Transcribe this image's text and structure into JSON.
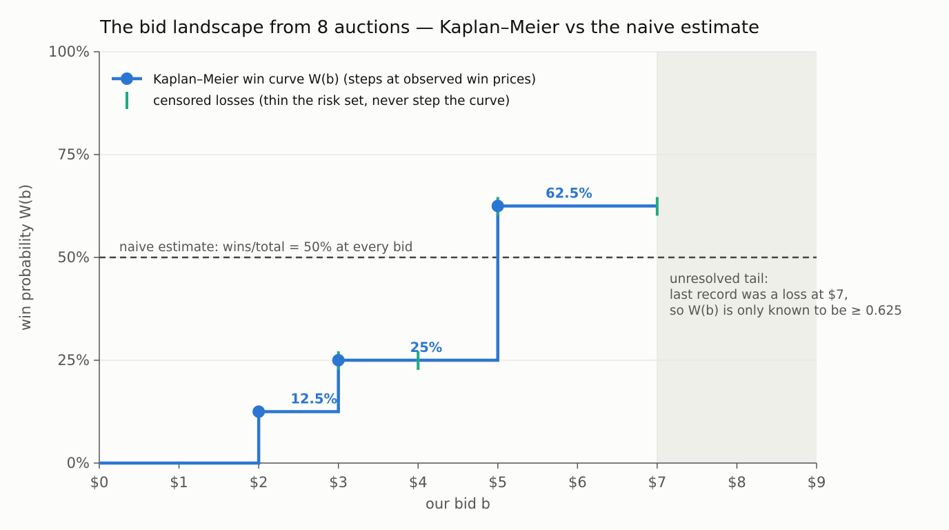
{
  "chart_data": {
    "type": "line",
    "title": "The bid landscape from 8 auctions — Kaplan–Meier vs the naive estimate",
    "xlabel": "our bid b",
    "ylabel": "win probability W(b)",
    "xlim": [
      0,
      9
    ],
    "ylim": [
      0,
      1
    ],
    "x_ticks": [
      0,
      1,
      2,
      3,
      4,
      5,
      6,
      7,
      8,
      9
    ],
    "x_tick_labels": [
      "$0",
      "$1",
      "$2",
      "$3",
      "$4",
      "$5",
      "$6",
      "$7",
      "$8",
      "$9"
    ],
    "y_ticks": [
      0,
      0.25,
      0.5,
      0.75,
      1
    ],
    "y_tick_labels": [
      "0%",
      "25%",
      "50%",
      "75%",
      "100%"
    ],
    "grid": "horizontal",
    "legend_position": "top-left",
    "colors": {
      "km": "#2b76d3",
      "censored": "#1faa80",
      "naive": "#444444",
      "tail": "#efefea"
    },
    "series": [
      {
        "name": "Kaplan–Meier win curve W(b) (steps at observed win prices)",
        "kind": "step",
        "x": [
          0,
          2,
          3,
          5,
          7
        ],
        "y": [
          0,
          0.125,
          0.25,
          0.625,
          0.625
        ],
        "markers": [
          {
            "x": 2,
            "y": 0.125
          },
          {
            "x": 3,
            "y": 0.25
          },
          {
            "x": 5,
            "y": 0.625
          }
        ]
      },
      {
        "name": "censored losses (thin the risk set, never step the curve)",
        "kind": "tick",
        "points": [
          {
            "x": 3,
            "y": 0.25
          },
          {
            "x": 4,
            "y": 0.25
          },
          {
            "x": 5,
            "y": 0.625
          },
          {
            "x": 7,
            "y": 0.625
          }
        ]
      }
    ],
    "naive_estimate": {
      "y": 0.5,
      "label": "naive estimate: wins/total = 50% at every bid"
    },
    "data_labels": [
      {
        "text": "12.5%",
        "x": 2.4,
        "y": 0.125
      },
      {
        "text": "25%",
        "x": 3.9,
        "y": 0.25
      },
      {
        "text": "62.5%",
        "x": 5.6,
        "y": 0.625
      }
    ],
    "shaded_region": {
      "x": [
        7,
        9
      ],
      "lines": [
        "unresolved tail:",
        "last record was a loss at $7,",
        "so W(b) is only known to be ≥ 0.625"
      ]
    }
  }
}
